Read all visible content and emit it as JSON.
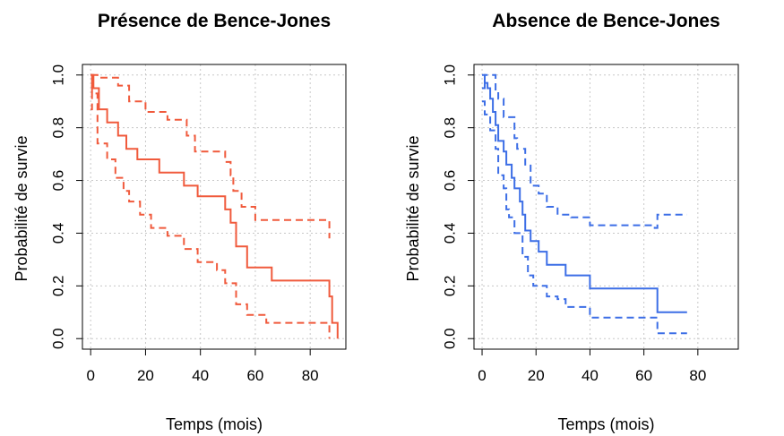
{
  "chart_data": [
    {
      "type": "line",
      "title": "Présence de Bence-Jones",
      "xlabel": "Temps (mois)",
      "ylabel": "Probabilité de survie",
      "xlim": [
        -3,
        93
      ],
      "ylim": [
        -0.04,
        1.04
      ],
      "xticks": [
        "0",
        "20",
        "40",
        "60",
        "80"
      ],
      "yticks": [
        "0.0",
        "0.2",
        "0.4",
        "0.6",
        "0.8",
        "1.0"
      ],
      "grid": true,
      "color": "#f05a3c",
      "series": [
        {
          "style": "solid",
          "x": [
            0,
            1,
            1,
            3,
            3,
            6,
            6,
            10,
            10,
            13,
            13,
            17,
            17,
            25,
            25,
            34,
            34,
            39,
            39,
            49,
            49,
            51,
            51,
            53,
            53,
            57,
            57,
            66,
            66,
            87,
            87,
            88,
            88,
            90,
            90
          ],
          "y": [
            1.0,
            1.0,
            0.95,
            0.95,
            0.87,
            0.87,
            0.82,
            0.82,
            0.77,
            0.77,
            0.72,
            0.72,
            0.68,
            0.68,
            0.63,
            0.63,
            0.58,
            0.58,
            0.54,
            0.54,
            0.49,
            0.49,
            0.44,
            0.44,
            0.35,
            0.35,
            0.27,
            0.27,
            0.22,
            0.22,
            0.16,
            0.16,
            0.06,
            0.06,
            0.0
          ]
        },
        {
          "style": "dashed",
          "x": [
            0,
            0.5,
            0.5,
            2.5,
            2.5,
            10,
            10,
            14,
            14,
            20,
            20,
            28,
            28,
            35,
            35,
            38,
            38,
            45,
            45,
            49,
            49,
            51,
            51,
            52,
            52,
            55,
            55,
            60,
            60,
            65,
            65,
            87,
            87
          ],
          "y": [
            0.87,
            0.87,
            1.0,
            1.0,
            0.99,
            0.99,
            0.96,
            0.96,
            0.9,
            0.9,
            0.86,
            0.86,
            0.83,
            0.83,
            0.77,
            0.77,
            0.71,
            0.71,
            0.71,
            0.71,
            0.67,
            0.67,
            0.62,
            0.62,
            0.56,
            0.56,
            0.5,
            0.5,
            0.45,
            0.45,
            0.45,
            0.45,
            0.38
          ]
        },
        {
          "style": "dashed",
          "x": [
            0,
            0.5,
            0.5,
            2.5,
            2.5,
            6,
            6,
            9,
            9,
            12,
            12,
            14,
            14,
            18,
            18,
            22,
            22,
            28,
            28,
            34,
            34,
            39,
            39,
            46,
            46,
            49,
            49,
            53,
            53,
            57,
            57,
            64,
            64,
            87,
            87
          ],
          "y": [
            1.0,
            1.0,
            0.93,
            0.93,
            0.74,
            0.74,
            0.68,
            0.68,
            0.61,
            0.61,
            0.56,
            0.56,
            0.52,
            0.52,
            0.47,
            0.47,
            0.42,
            0.42,
            0.39,
            0.39,
            0.34,
            0.34,
            0.29,
            0.29,
            0.26,
            0.26,
            0.21,
            0.21,
            0.13,
            0.13,
            0.09,
            0.09,
            0.06,
            0.06,
            0.0
          ]
        }
      ]
    },
    {
      "type": "line",
      "title": "Absence de Bence-Jones",
      "xlabel": "Temps (mois)",
      "ylabel": "Probabilité de survie",
      "xlim": [
        -3,
        95
      ],
      "ylim": [
        -0.04,
        1.04
      ],
      "xticks": [
        "0",
        "20",
        "40",
        "60",
        "80"
      ],
      "yticks": [
        "0.0",
        "0.2",
        "0.4",
        "0.6",
        "0.8",
        "1.0"
      ],
      "grid": true,
      "color": "#3c6ee6",
      "series": [
        {
          "style": "solid",
          "x": [
            0,
            1,
            1,
            2,
            2,
            3,
            3,
            4,
            4,
            5,
            5,
            6,
            6,
            8,
            8,
            9,
            9,
            11,
            11,
            12,
            12,
            14,
            14,
            15,
            15,
            16,
            16,
            18,
            18,
            21,
            21,
            24,
            24,
            31,
            31,
            40,
            40,
            65,
            65,
            76
          ],
          "y": [
            1.0,
            1.0,
            0.97,
            0.97,
            0.95,
            0.95,
            0.91,
            0.91,
            0.86,
            0.86,
            0.81,
            0.81,
            0.75,
            0.75,
            0.71,
            0.71,
            0.66,
            0.66,
            0.61,
            0.61,
            0.57,
            0.57,
            0.52,
            0.52,
            0.47,
            0.47,
            0.41,
            0.41,
            0.37,
            0.37,
            0.33,
            0.33,
            0.28,
            0.28,
            0.24,
            0.24,
            0.19,
            0.19,
            0.1,
            0.1
          ]
        },
        {
          "style": "dashed",
          "x": [
            0,
            1,
            1,
            5,
            5,
            6,
            6,
            8,
            8,
            12,
            12,
            13,
            13,
            16,
            16,
            18,
            18,
            21,
            21,
            24,
            24,
            28,
            28,
            33,
            33,
            40,
            40,
            64,
            64,
            65,
            65,
            76
          ],
          "y": [
            0.95,
            0.95,
            1.0,
            1.0,
            0.94,
            0.94,
            0.91,
            0.91,
            0.84,
            0.84,
            0.76,
            0.76,
            0.72,
            0.72,
            0.66,
            0.66,
            0.58,
            0.58,
            0.55,
            0.55,
            0.5,
            0.5,
            0.47,
            0.47,
            0.46,
            0.46,
            0.43,
            0.43,
            0.42,
            0.42,
            0.47,
            0.47
          ]
        },
        {
          "style": "dashed",
          "x": [
            0,
            1,
            1,
            3,
            3,
            5,
            5,
            6,
            6,
            8,
            8,
            9,
            9,
            10,
            10,
            12,
            12,
            15,
            15,
            17,
            17,
            19,
            19,
            24,
            24,
            28,
            28,
            31,
            31,
            40,
            40,
            65,
            65,
            76
          ],
          "y": [
            0.9,
            0.9,
            0.85,
            0.85,
            0.79,
            0.79,
            0.72,
            0.72,
            0.62,
            0.62,
            0.57,
            0.57,
            0.49,
            0.49,
            0.46,
            0.46,
            0.4,
            0.4,
            0.31,
            0.31,
            0.24,
            0.24,
            0.2,
            0.2,
            0.16,
            0.16,
            0.15,
            0.15,
            0.12,
            0.12,
            0.08,
            0.08,
            0.02,
            0.02
          ]
        }
      ]
    }
  ]
}
